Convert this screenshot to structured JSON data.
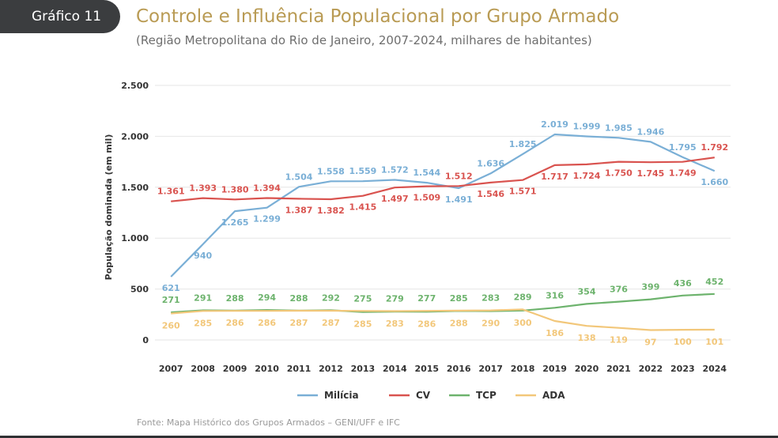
{
  "header": {
    "badge": "Gráfico 11",
    "title": "Controle e Influência Populacional por Grupo Armado",
    "subtitle": "(Região Metropolitana do Rio de Janeiro, 2007-2024, milhares de habitantes)"
  },
  "footer": {
    "source": "Fonte: Mapa Histórico dos Grupos Armados – GENI/UFF e IFC"
  },
  "chart_data": {
    "type": "line",
    "title": "Controle e Influência Populacional por Grupo Armado",
    "ylabel": "População dominada (em mil)",
    "xlabel": "",
    "ylim": [
      0,
      2500
    ],
    "yticks": [
      0,
      500,
      1000,
      1500,
      2000,
      2500
    ],
    "ytick_labels": [
      "0",
      "500",
      "1.000",
      "1.500",
      "2.000",
      "2.500"
    ],
    "grid": true,
    "legend_position": "bottom-center",
    "categories": [
      "2007",
      "2008",
      "2009",
      "2010",
      "2011",
      "2012",
      "2013",
      "2014",
      "2015",
      "2016",
      "2017",
      "2018",
      "2019",
      "2020",
      "2021",
      "2022",
      "2023",
      "2024"
    ],
    "series": [
      {
        "name": "Milícia",
        "color": "#7aafd6",
        "values": [
          621,
          940,
          1265,
          1299,
          1504,
          1558,
          1559,
          1572,
          1544,
          1491,
          1636,
          1825,
          2019,
          1999,
          1985,
          1946,
          1795,
          1660
        ],
        "labels": [
          "621",
          "940",
          "1.265",
          "1.299",
          "1.504",
          "1.558",
          "1.559",
          "1.572",
          "1.544",
          "1.491",
          "1.636",
          "1.825",
          "2.019",
          "1.999",
          "1.985",
          "1.946",
          "1.795",
          "1.660"
        ]
      },
      {
        "name": "CV",
        "color": "#d9534f",
        "values": [
          1361,
          1393,
          1380,
          1394,
          1387,
          1382,
          1415,
          1497,
          1509,
          1512,
          1546,
          1571,
          1717,
          1724,
          1750,
          1745,
          1749,
          1792
        ],
        "labels": [
          "1.361",
          "1.393",
          "1.380",
          "1.394",
          "1.387",
          "1.382",
          "1.415",
          "1.497",
          "1.509",
          "1.512",
          "1.546",
          "1.571",
          "1.717",
          "1.724",
          "1.750",
          "1.745",
          "1.749",
          "1.792"
        ]
      },
      {
        "name": "TCP",
        "color": "#6db36d",
        "values": [
          271,
          291,
          288,
          294,
          288,
          292,
          275,
          279,
          277,
          285,
          283,
          289,
          316,
          354,
          376,
          399,
          436,
          452
        ],
        "labels": [
          "271",
          "291",
          "288",
          "294",
          "288",
          "292",
          "275",
          "279",
          "277",
          "285",
          "283",
          "289",
          "316",
          "354",
          "376",
          "399",
          "436",
          "452"
        ]
      },
      {
        "name": "ADA",
        "color": "#f2c77a",
        "values": [
          260,
          285,
          286,
          286,
          287,
          287,
          285,
          283,
          286,
          288,
          290,
          300,
          186,
          138,
          119,
          97,
          100,
          101
        ],
        "labels": [
          "260",
          "285",
          "286",
          "286",
          "287",
          "287",
          "285",
          "283",
          "286",
          "288",
          "290",
          "300",
          "186",
          "138",
          "119",
          "97",
          "100",
          "101"
        ]
      }
    ]
  }
}
